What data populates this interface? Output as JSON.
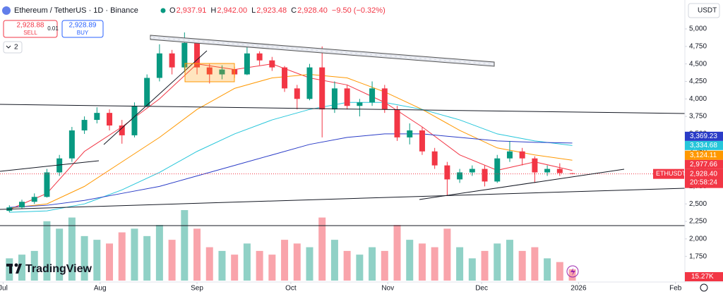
{
  "chart_data": {
    "type": "candlestick",
    "title": "Ethereum / TetherUS · 1D · Binance",
    "ohlc_fields": [
      {
        "key": "O",
        "value": "2,937.91"
      },
      {
        "key": "H",
        "value": "2,942.00"
      },
      {
        "key": "L",
        "value": "2,923.48"
      },
      {
        "key": "C",
        "value": "2,928.40"
      }
    ],
    "change": "−9.50 (−0.32%)",
    "sell": {
      "price": "2,928.88",
      "label": "SELL"
    },
    "spread": "0.01",
    "buy": {
      "price": "2,928.89",
      "label": "BUY"
    },
    "indicators_count": "2",
    "currency": "USDT",
    "brand": "TradingView",
    "symbol_label": "ETHUSDT",
    "last_price_label": "2,928.40",
    "countdown": "20:58:24",
    "volume_last_label": "15.27K",
    "up_color": "#089981",
    "down_color": "#f23645",
    "x": [
      2,
      6,
      10,
      14,
      18,
      22,
      26,
      30,
      34,
      38,
      42,
      46,
      50,
      54,
      58,
      62,
      66,
      70,
      74,
      78,
      82,
      86,
      90,
      94,
      98,
      102,
      106,
      110,
      114,
      118,
      122,
      126,
      130,
      134,
      138,
      142,
      146,
      150,
      154,
      158,
      162,
      166,
      170,
      174,
      178,
      182
    ],
    "open": [
      2400,
      2450,
      2530,
      2600,
      2950,
      3150,
      3550,
      3700,
      3800,
      3620,
      3480,
      3900,
      4300,
      4650,
      4450,
      4800,
      4450,
      4350,
      4420,
      4350,
      4650,
      4550,
      4450,
      4150,
      4000,
      4450,
      3850,
      4150,
      3900,
      3950,
      4150,
      3850,
      3450,
      3550,
      3250,
      3050,
      2850,
      2950,
      3000,
      2820,
      3150,
      3250,
      3150,
      2950,
      3000,
      2937.91
    ],
    "high": [
      2480,
      2560,
      2650,
      3000,
      3200,
      3600,
      3750,
      3880,
      3850,
      3700,
      3950,
      4350,
      4780,
      4700,
      4950,
      4850,
      4500,
      4480,
      4460,
      4760,
      4680,
      4600,
      4470,
      4200,
      4500,
      4750,
      4250,
      4200,
      4000,
      4250,
      4200,
      3900,
      3650,
      3600,
      3300,
      3100,
      3000,
      3050,
      3050,
      3200,
      3400,
      3300,
      3180,
      3050,
      3080,
      2942
    ],
    "low": [
      2380,
      2430,
      2500,
      2590,
      2900,
      3100,
      3500,
      3650,
      3550,
      3360,
      3450,
      3880,
      4250,
      4350,
      4400,
      4350,
      4220,
      4280,
      4300,
      4340,
      4480,
      4400,
      4100,
      3850,
      3980,
      3450,
      3800,
      3850,
      3750,
      3900,
      3800,
      3400,
      3350,
      3200,
      3000,
      2620,
      2800,
      2900,
      2750,
      2800,
      3100,
      3050,
      2800,
      2900,
      2900,
      2923.48
    ],
    "close": [
      2450,
      2530,
      2600,
      2950,
      3150,
      3550,
      3700,
      3800,
      3620,
      3480,
      3900,
      4300,
      4650,
      4450,
      4800,
      4450,
      4350,
      4420,
      4350,
      4650,
      4550,
      4450,
      4150,
      4000,
      4450,
      3850,
      4150,
      3900,
      3950,
      4150,
      3850,
      3450,
      3550,
      3250,
      3050,
      2850,
      2950,
      3000,
      2820,
      3150,
      3250,
      3150,
      2950,
      3000,
      2940,
      2928.4
    ],
    "volume": [
      30,
      35,
      40,
      80,
      70,
      85,
      60,
      55,
      50,
      65,
      70,
      60,
      75,
      55,
      95,
      70,
      45,
      40,
      35,
      50,
      40,
      35,
      55,
      50,
      45,
      85,
      55,
      40,
      35,
      45,
      40,
      75,
      55,
      50,
      45,
      70,
      45,
      30,
      40,
      50,
      55,
      40,
      45,
      30,
      25,
      15.27
    ],
    "series": [
      {
        "color": "#f23645",
        "x": [
          2,
          14,
          26,
          38,
          50,
          62,
          74,
          86,
          98,
          110,
          122,
          134,
          146,
          158,
          170,
          182
        ],
        "values": [
          2420,
          2650,
          3250,
          3600,
          4000,
          4500,
          4420,
          4500,
          4300,
          4200,
          3950,
          3600,
          3200,
          2980,
          3100,
          2977.66
        ],
        "last_label": "2,977.66"
      },
      {
        "color": "#ff9800",
        "x": [
          2,
          14,
          26,
          38,
          50,
          62,
          74,
          86,
          98,
          110,
          122,
          134,
          146,
          158,
          170,
          182
        ],
        "values": [
          2440,
          2500,
          2750,
          3100,
          3450,
          3850,
          4150,
          4300,
          4350,
          4300,
          4100,
          3850,
          3550,
          3300,
          3200,
          3124.11
        ],
        "last_label": "3,124.11"
      },
      {
        "color": "#26c6da",
        "x": [
          2,
          14,
          26,
          38,
          50,
          62,
          74,
          86,
          98,
          110,
          122,
          134,
          146,
          158,
          170,
          182
        ],
        "values": [
          2380,
          2400,
          2500,
          2700,
          2950,
          3250,
          3500,
          3700,
          3850,
          3950,
          3950,
          3850,
          3700,
          3500,
          3400,
          3334.68
        ],
        "last_label": "3,334.68"
      },
      {
        "color": "#2a3cc7",
        "x": [
          2,
          14,
          26,
          38,
          50,
          62,
          74,
          86,
          98,
          110,
          122,
          134,
          146,
          158,
          170,
          182
        ],
        "values": [
          2450,
          2480,
          2550,
          2650,
          2750,
          2900,
          3050,
          3200,
          3350,
          3450,
          3500,
          3500,
          3450,
          3400,
          3380,
          3369.23
        ],
        "last_label": "3,369.23"
      }
    ],
    "ylim": [
      1384,
      5413
    ],
    "yticks": [
      {
        "value": 1750,
        "label": "1,750"
      },
      {
        "value": 2000,
        "label": "2,000"
      },
      {
        "value": 2250,
        "label": "2,250"
      },
      {
        "value": 2500,
        "label": "2,500"
      },
      {
        "value": 2750,
        "label": "2,750"
      },
      {
        "value": 3000,
        "label": "3,000"
      },
      {
        "value": 3250,
        "label": "3,250"
      },
      {
        "value": 3500,
        "label": "3,500"
      },
      {
        "value": 3750,
        "label": "3,750"
      },
      {
        "value": 4000,
        "label": "4,000"
      },
      {
        "value": 4250,
        "label": "4,250"
      },
      {
        "value": 4500,
        "label": "4,500"
      },
      {
        "value": 4750,
        "label": "4,750"
      },
      {
        "value": 5000,
        "label": "5,000"
      }
    ],
    "xlim": [
      -1,
      218
    ],
    "xticks": [
      {
        "value": 0,
        "label": "Jul"
      },
      {
        "value": 31,
        "label": "Aug"
      },
      {
        "value": 62,
        "label": "Sep"
      },
      {
        "value": 92,
        "label": "Oct"
      },
      {
        "value": 123,
        "label": "Nov"
      },
      {
        "value": 153,
        "label": "Dec"
      },
      {
        "value": 184,
        "label": "2026"
      },
      {
        "value": 215,
        "label": "Feb"
      }
    ],
    "grid": false
  }
}
